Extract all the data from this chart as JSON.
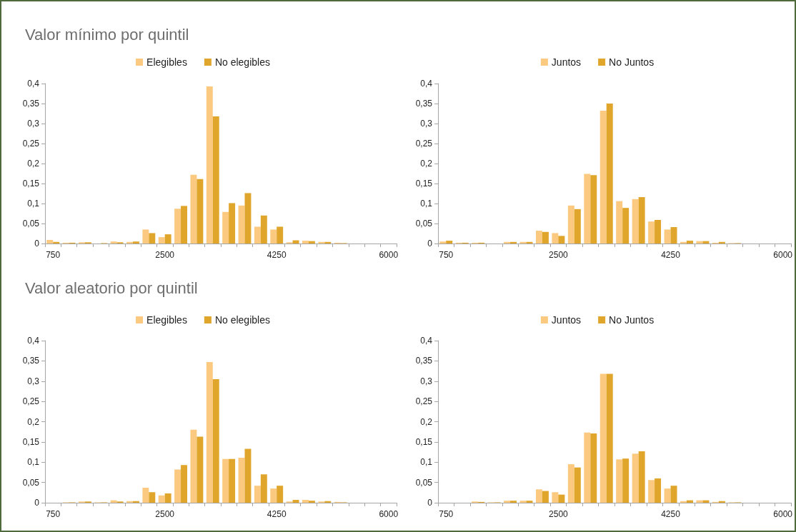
{
  "chart_data": [
    {
      "type": "bar",
      "title": "Valor mínimo por quintil",
      "categories": [
        "750",
        null,
        null,
        null,
        null,
        null,
        null,
        "2500",
        null,
        null,
        null,
        null,
        null,
        null,
        "4250",
        null,
        null,
        null,
        null,
        null,
        null,
        "6000"
      ],
      "series": [
        {
          "name": "Elegibles",
          "color": "#fbca80",
          "values": [
            0.009,
            0.002,
            0.003,
            0,
            0.005,
            0.004,
            0.035,
            0.016,
            0.087,
            0.172,
            0.393,
            0.079,
            0.095,
            0.042,
            0.035,
            0.003,
            0.007,
            0.004,
            0.002,
            0,
            0,
            0
          ]
        },
        {
          "name": "No elegibles",
          "color": "#e0a62c",
          "values": [
            0.004,
            0.002,
            0.003,
            0.001,
            0.003,
            0.005,
            0.026,
            0.023,
            0.094,
            0.161,
            0.318,
            0.101,
            0.126,
            0.07,
            0.042,
            0.008,
            0.006,
            0.004,
            0.001,
            0,
            0,
            0
          ]
        }
      ],
      "ylim": [
        0,
        0.4
      ],
      "yticks": [
        {
          "value": 0,
          "label": "0"
        },
        {
          "value": 0.05,
          "label": "0,05"
        },
        {
          "value": 0.1,
          "label": "0,1"
        },
        {
          "value": 0.15,
          "label": "0,15"
        },
        {
          "value": 0.2,
          "label": "0,2"
        },
        {
          "value": 0.25,
          "label": "0,25"
        },
        {
          "value": 0.3,
          "label": "0,3"
        },
        {
          "value": 0.35,
          "label": "0,35"
        },
        {
          "value": 0.4,
          "label": "0,4"
        }
      ],
      "legend": "top",
      "grid": false
    },
    {
      "type": "bar",
      "categories": [
        "750",
        null,
        null,
        null,
        null,
        null,
        null,
        "2500",
        null,
        null,
        null,
        null,
        null,
        null,
        "4250",
        null,
        null,
        null,
        null,
        null,
        null,
        "6000"
      ],
      "series": [
        {
          "name": "Juntos",
          "color": "#fbca80",
          "values": [
            0.005,
            0.002,
            0.002,
            0,
            0.004,
            0.004,
            0.032,
            0.026,
            0.095,
            0.174,
            0.332,
            0.106,
            0.111,
            0.055,
            0.035,
            0.004,
            0.006,
            0.002,
            0.001,
            0,
            0,
            0
          ]
        },
        {
          "name": "No Juntos",
          "color": "#e0a62c",
          "values": [
            0.007,
            0.002,
            0.002,
            0,
            0.004,
            0.004,
            0.029,
            0.019,
            0.086,
            0.171,
            0.35,
            0.089,
            0.116,
            0.059,
            0.041,
            0.007,
            0.006,
            0.004,
            0.001,
            0,
            0,
            0
          ]
        }
      ],
      "ylim": [
        0,
        0.4
      ],
      "yticks": [
        {
          "value": 0,
          "label": "0"
        },
        {
          "value": 0.05,
          "label": "0,05"
        },
        {
          "value": 0.1,
          "label": "0,1"
        },
        {
          "value": 0.15,
          "label": "0,15"
        },
        {
          "value": 0.2,
          "label": "0,2"
        },
        {
          "value": 0.25,
          "label": "0,25"
        },
        {
          "value": 0.3,
          "label": "0,3"
        },
        {
          "value": 0.35,
          "label": "0,35"
        },
        {
          "value": 0.4,
          "label": "0,4"
        }
      ],
      "legend": "top",
      "grid": false
    },
    {
      "type": "bar",
      "title": "Valor aleatorio por quintil",
      "categories": [
        "750",
        null,
        null,
        null,
        null,
        null,
        null,
        "2500",
        null,
        null,
        null,
        null,
        null,
        null,
        "4250",
        null,
        null,
        null,
        null,
        null,
        null,
        "6000"
      ],
      "series": [
        {
          "name": "Elegibles",
          "color": "#fbca80",
          "values": [
            0,
            0.001,
            0.003,
            0.001,
            0.006,
            0.004,
            0.037,
            0.018,
            0.082,
            0.18,
            0.347,
            0.108,
            0.111,
            0.042,
            0.035,
            0.003,
            0.007,
            0.003,
            0.002,
            0,
            0,
            0
          ]
        },
        {
          "name": "No elegibles",
          "color": "#e0a62c",
          "values": [
            0,
            0.001,
            0.003,
            0.001,
            0.003,
            0.004,
            0.026,
            0.023,
            0.093,
            0.163,
            0.305,
            0.108,
            0.133,
            0.07,
            0.042,
            0.007,
            0.005,
            0.004,
            0.001,
            0,
            0,
            0
          ]
        }
      ],
      "ylim": [
        0,
        0.4
      ],
      "yticks": [
        {
          "value": 0,
          "label": "0"
        },
        {
          "value": 0.05,
          "label": "0,05"
        },
        {
          "value": 0.1,
          "label": "0,1"
        },
        {
          "value": 0.15,
          "label": "0,15"
        },
        {
          "value": 0.2,
          "label": "0,2"
        },
        {
          "value": 0.25,
          "label": "0,25"
        },
        {
          "value": 0.3,
          "label": "0,3"
        },
        {
          "value": 0.35,
          "label": "0,35"
        },
        {
          "value": 0.4,
          "label": "0,4"
        }
      ],
      "legend": "top",
      "grid": false
    },
    {
      "type": "bar",
      "categories": [
        "750",
        null,
        null,
        null,
        null,
        null,
        null,
        "2500",
        null,
        null,
        null,
        null,
        null,
        null,
        "4250",
        null,
        null,
        null,
        null,
        null,
        null,
        "6000"
      ],
      "series": [
        {
          "name": "Juntos",
          "color": "#fbca80",
          "values": [
            0,
            0,
            0.003,
            0.001,
            0.005,
            0.005,
            0.033,
            0.026,
            0.095,
            0.173,
            0.318,
            0.107,
            0.121,
            0.056,
            0.035,
            0.004,
            0.006,
            0.002,
            0.001,
            0,
            0,
            0
          ]
        },
        {
          "name": "No Juntos",
          "color": "#e0a62c",
          "values": [
            0,
            0,
            0.002,
            0.001,
            0.005,
            0.005,
            0.029,
            0.02,
            0.087,
            0.171,
            0.318,
            0.109,
            0.127,
            0.06,
            0.042,
            0.006,
            0.006,
            0.004,
            0.001,
            0,
            0,
            0
          ]
        }
      ],
      "ylim": [
        0,
        0.4
      ],
      "yticks": [
        {
          "value": 0,
          "label": "0"
        },
        {
          "value": 0.05,
          "label": "0,05"
        },
        {
          "value": 0.1,
          "label": "0,1"
        },
        {
          "value": 0.15,
          "label": "0,15"
        },
        {
          "value": 0.2,
          "label": "0,2"
        },
        {
          "value": 0.25,
          "label": "0,25"
        },
        {
          "value": 0.3,
          "label": "0,3"
        },
        {
          "value": 0.35,
          "label": "0,35"
        },
        {
          "value": 0.4,
          "label": "0,4"
        }
      ],
      "legend": "top",
      "grid": false
    }
  ]
}
